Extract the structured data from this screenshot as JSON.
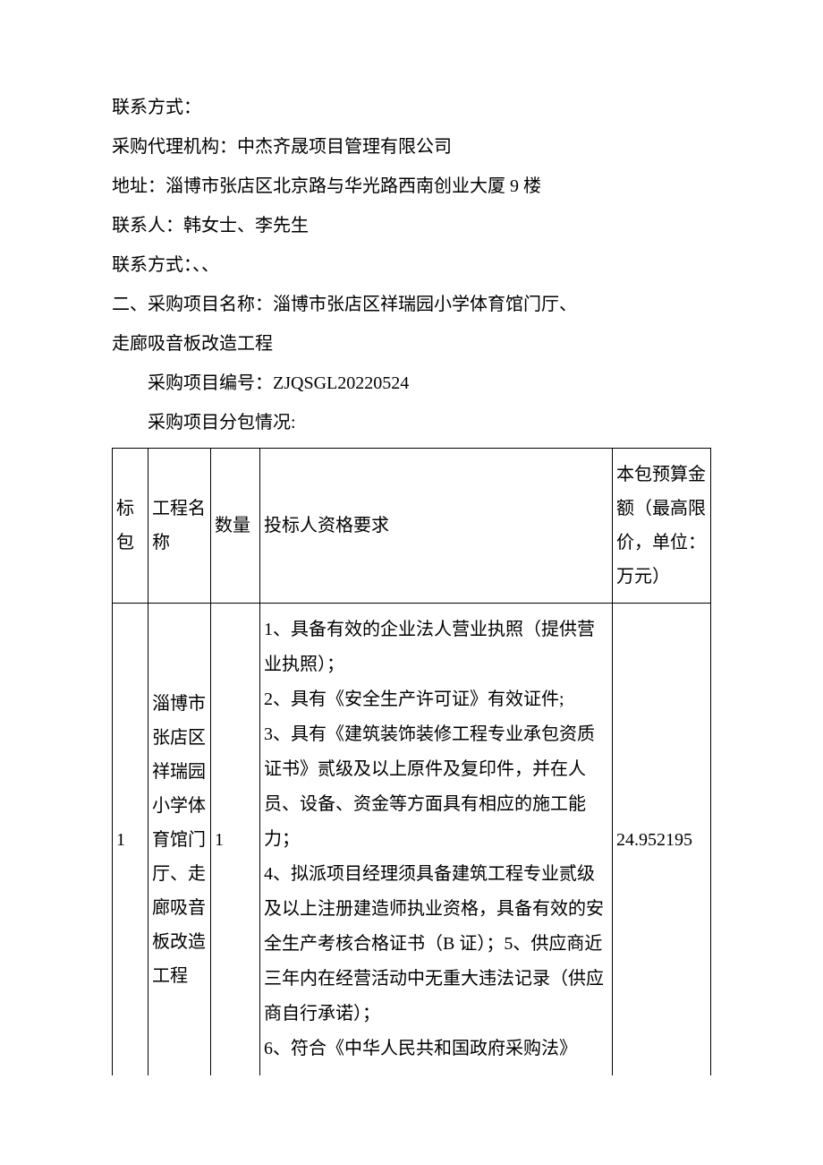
{
  "intro": {
    "line1": "联系方式：",
    "line2": "采购代理机构：中杰齐晟项目管理有限公司",
    "line3": "地址：淄博市张店区北京路与华光路西南创业大厦 9 楼",
    "line4": "联系人：韩女士、李先生",
    "line5": "联系方式：、、",
    "line6": "二、采购项目名称：淄博市张店区祥瑞园小学体育馆门厅、",
    "line7": "走廊吸音板改造工程",
    "line8": "采购项目编号：ZJQSGL20220524",
    "line9": "采购项目分包情况:"
  },
  "table": {
    "headers": {
      "col1": "标包",
      "col2": "工程名称",
      "col3": "数量",
      "col4": "投标人资格要求",
      "col5": "本包预算金额（最高限价，单位：万元）"
    },
    "row1": {
      "col1": "1",
      "col2": "淄博市张店区祥瑞园小学体育馆门厅、走廊吸音板改造工程",
      "col3": "1",
      "col4_lines": {
        "l1": "1、具备有效的企业法人营业执照（提供营业执照）；",
        "l2": "2、具有《安全生产许可证》有效证件;",
        "l3": "3、具有《建筑装饰装修工程专业承包资质证书》贰级及以上原件及复印件，并在人员、设备、资金等方面具有相应的施工能力；",
        "l4": "4、拟派项目经理须具备建筑工程专业贰级及以上注册建造师执业资格，具备有效的安全生产考核合格证书（B 证）；5、供应商近三年内在经营活动中无重大违法记录（供应商自行承诺）；",
        "l5": "6、符合《中华人民共和国政府采购法》"
      },
      "col5": "24.952195"
    }
  },
  "styles": {
    "background_color": "#ffffff",
    "text_color": "#000000",
    "border_color": "#000000",
    "font_size": 20,
    "font_family": "SimSun"
  }
}
